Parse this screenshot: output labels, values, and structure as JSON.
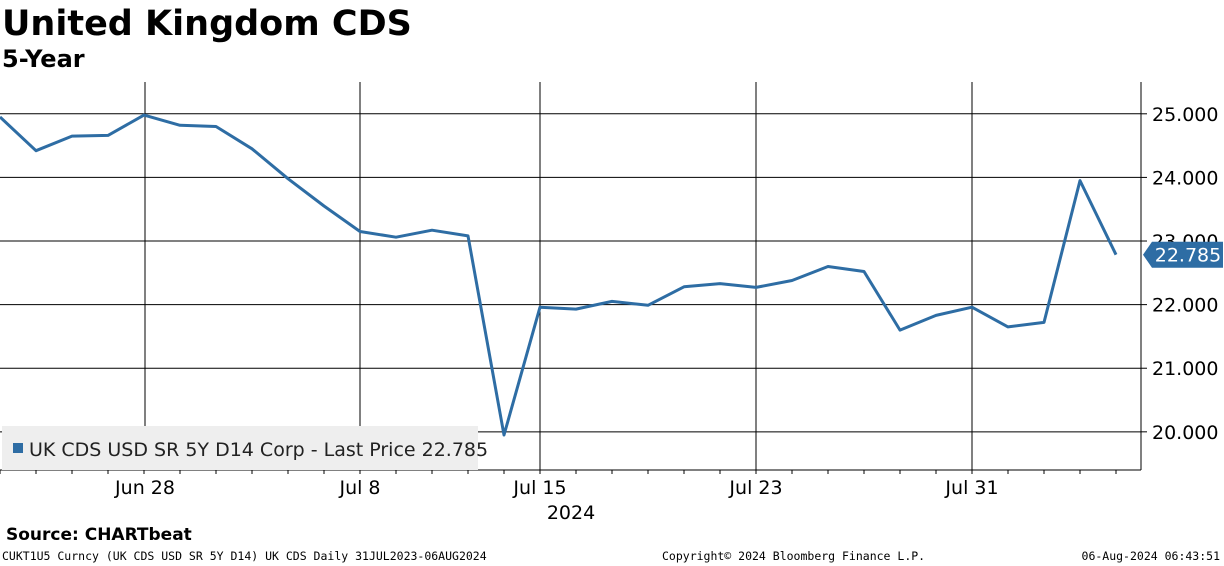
{
  "chart_data": {
    "type": "line",
    "title": "United Kingdom CDS",
    "subtitle": "5-Year",
    "x_ticks": [
      "Jun 28",
      "Jul 8",
      "Jul 15",
      "Jul 23",
      "Jul 31"
    ],
    "x_year_label": "2024",
    "y_ticks": [
      "20.000",
      "21.000",
      "22.000",
      "23.000",
      "24.000",
      "25.000"
    ],
    "ylim": [
      19.4,
      25.5
    ],
    "y_axis_position": "right",
    "grid": true,
    "legend_position": "bottom-left",
    "last_price_label": "22.785",
    "series": [
      {
        "name": "UK CDS USD SR 5Y D14 Corp - Last Price 22.785",
        "color": "#2e6da4",
        "points": [
          [
            "2024-06-24",
            24.95
          ],
          [
            "2024-06-25",
            24.42
          ],
          [
            "2024-06-26",
            24.65
          ],
          [
            "2024-06-27",
            24.66
          ],
          [
            "2024-06-28",
            24.98
          ],
          [
            "2024-07-01",
            24.82
          ],
          [
            "2024-07-02",
            24.8
          ],
          [
            "2024-07-03",
            24.45
          ],
          [
            "2024-07-04",
            23.98
          ],
          [
            "2024-07-05",
            23.55
          ],
          [
            "2024-07-08",
            23.15
          ],
          [
            "2024-07-09",
            23.06
          ],
          [
            "2024-07-10",
            23.17
          ],
          [
            "2024-07-11",
            23.08
          ],
          [
            "2024-07-12",
            19.95
          ],
          [
            "2024-07-15",
            21.96
          ],
          [
            "2024-07-16",
            21.93
          ],
          [
            "2024-07-17",
            22.05
          ],
          [
            "2024-07-18",
            21.99
          ],
          [
            "2024-07-19",
            22.28
          ],
          [
            "2024-07-22",
            22.33
          ],
          [
            "2024-07-23",
            22.27
          ],
          [
            "2024-07-24",
            22.38
          ],
          [
            "2024-07-25",
            22.6
          ],
          [
            "2024-07-26",
            22.52
          ],
          [
            "2024-07-29",
            21.6
          ],
          [
            "2024-07-30",
            21.83
          ],
          [
            "2024-07-31",
            21.96
          ],
          [
            "2024-08-01",
            21.65
          ],
          [
            "2024-08-02",
            21.72
          ],
          [
            "2024-08-05",
            23.95
          ],
          [
            "2024-08-06",
            22.785
          ]
        ]
      }
    ]
  },
  "footer": {
    "source": "Source: CHARTbeat",
    "ticker_info": "CUKT1U5 Curncy (UK CDS USD SR 5Y D14) UK CDS  Daily 31JUL2023-06AUG2024",
    "copyright": "Copyright© 2024 Bloomberg Finance L.P.",
    "timestamp": "06-Aug-2024 06:43:51"
  },
  "colors": {
    "series": "#2e6da4",
    "grid": "#000000",
    "legend_bg": "#eeeeee"
  }
}
